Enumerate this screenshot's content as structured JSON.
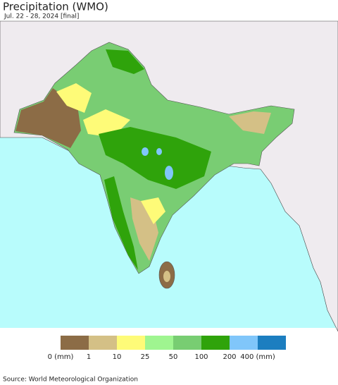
{
  "title": "Precipitation (WMO)",
  "subtitle": "Jul. 22 - 28, 2024 [final]",
  "legend": {
    "colors": [
      "#8c6c46",
      "#d4c086",
      "#fefb78",
      "#9ff590",
      "#78cd72",
      "#2fa30b",
      "#80c6fa",
      "#1c7ec0"
    ],
    "labels": [
      "0 (mm)",
      "1",
      "10",
      "25",
      "50",
      "100",
      "200",
      "400 (mm)"
    ]
  },
  "source": "Source: World Meteorological Organization"
}
